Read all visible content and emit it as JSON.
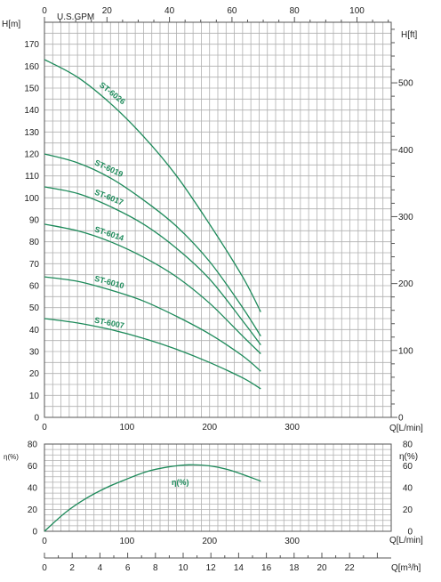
{
  "chart_data": [
    {
      "type": "line",
      "left_axis_label": "H[m]",
      "right_axis_label": "H[ft]",
      "top_axis_label": "U.S.GPM",
      "bottom_axis_label": "Q[L/min]",
      "xlim": [
        0,
        420
      ],
      "ylim": [
        0,
        180
      ],
      "left_ticks": [
        0,
        10,
        20,
        30,
        40,
        50,
        60,
        70,
        80,
        90,
        100,
        110,
        120,
        130,
        140,
        150,
        160,
        170
      ],
      "bottom_ticks": [
        0,
        100,
        200,
        300
      ],
      "top_ticks": [
        0,
        20,
        40,
        60,
        80,
        100
      ],
      "right_ticks": [
        0,
        100,
        200,
        300,
        400,
        500
      ],
      "grid": true,
      "series": [
        {
          "name": "ST-6026",
          "x": [
            0,
            40,
            80,
            120,
            160,
            200,
            240,
            262
          ],
          "y": [
            163,
            155,
            143,
            128,
            110,
            88,
            64,
            48
          ]
        },
        {
          "name": "ST-6019",
          "x": [
            0,
            40,
            80,
            120,
            160,
            200,
            240,
            262
          ],
          "y": [
            120,
            116,
            109,
            99,
            87,
            71,
            50,
            37
          ]
        },
        {
          "name": "ST-6017",
          "x": [
            0,
            40,
            80,
            120,
            160,
            200,
            240,
            262
          ],
          "y": [
            105,
            102,
            96,
            88,
            77,
            63,
            44,
            33
          ]
        },
        {
          "name": "ST-6014",
          "x": [
            0,
            40,
            80,
            120,
            160,
            200,
            240,
            262
          ],
          "y": [
            88,
            85,
            80,
            73,
            64,
            52,
            37,
            29
          ]
        },
        {
          "name": "ST-6010",
          "x": [
            0,
            40,
            80,
            120,
            160,
            200,
            240,
            262
          ],
          "y": [
            64,
            62,
            58,
            53,
            46,
            38,
            28,
            21
          ]
        },
        {
          "name": "ST-6007",
          "x": [
            0,
            40,
            80,
            120,
            160,
            200,
            240,
            262
          ],
          "y": [
            45,
            43,
            40,
            36,
            31,
            25,
            18,
            13
          ]
        }
      ]
    },
    {
      "type": "line",
      "left_axis_label": "η(%)",
      "right_axis_label": "η(%)",
      "bottom_axis_label": "Q[L/min]",
      "xlim": [
        0,
        420
      ],
      "ylim": [
        0,
        80
      ],
      "left_ticks": [
        0,
        20,
        40,
        60,
        80
      ],
      "right_ticks": [
        0,
        20,
        40,
        60,
        80
      ],
      "bottom_ticks": [
        0,
        100,
        200,
        300
      ],
      "grid": true,
      "series": [
        {
          "name": "η(%)",
          "x": [
            0,
            25,
            50,
            75,
            100,
            125,
            150,
            175,
            200,
            225,
            262
          ],
          "y": [
            0,
            17,
            30,
            40,
            48,
            55,
            59,
            61,
            60,
            56,
            46
          ]
        }
      ]
    },
    {
      "type": "axis",
      "axis_label": "Q[m³/h]",
      "xlim": [
        0,
        25
      ],
      "ticks": [
        0,
        2,
        4,
        6,
        8,
        10,
        12,
        14,
        16,
        18,
        20,
        22
      ]
    }
  ]
}
